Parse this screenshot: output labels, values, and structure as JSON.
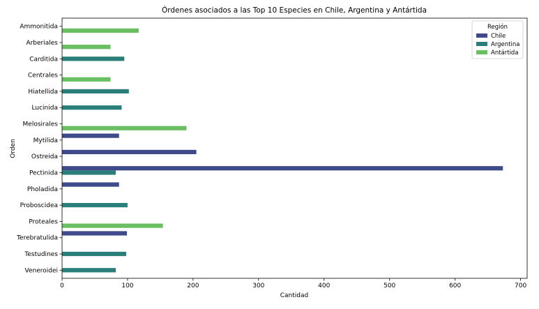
{
  "chart_data": {
    "type": "bar",
    "orientation": "horizontal",
    "title": "Órdenes asociados a las Top 10 Especies en Chile, Argentina y Antártida",
    "xlabel": "Cantidad",
    "ylabel": "Orden",
    "xlim": [
      0,
      710
    ],
    "xticks": [
      0,
      100,
      200,
      300,
      400,
      500,
      600,
      700
    ],
    "grid": false,
    "legend": {
      "title": "Región",
      "placement": "top-right"
    },
    "categories": [
      "Ammonitida",
      "Arberiales",
      "Carditida",
      "Centrales",
      "Hiatellida",
      "Lucinida",
      "Melosirales",
      "Mytilida",
      "Ostreida",
      "Pectinida",
      "Pholadida",
      "Proboscidea",
      "Proteales",
      "Terebratulida",
      "Testudines",
      "Veneroidei"
    ],
    "series": [
      {
        "name": "Chile",
        "color": "#3e4a89",
        "values": [
          0,
          0,
          0,
          0,
          0,
          0,
          0,
          87,
          205,
          673,
          87,
          0,
          0,
          99,
          0,
          0
        ]
      },
      {
        "name": "Argentina",
        "color": "#2a7f7a",
        "values": [
          0,
          0,
          95,
          0,
          102,
          91,
          0,
          0,
          0,
          82,
          0,
          100,
          0,
          0,
          98,
          82
        ]
      },
      {
        "name": "Antártida",
        "color": "#6bbf63",
        "values": [
          117,
          74,
          0,
          74,
          0,
          0,
          190,
          0,
          0,
          0,
          0,
          0,
          154,
          0,
          0,
          0
        ]
      }
    ]
  }
}
